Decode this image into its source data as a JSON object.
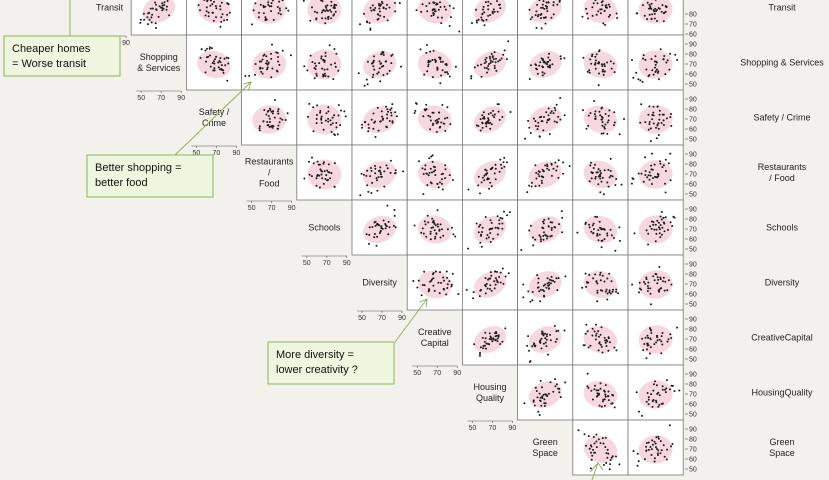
{
  "chart_data": {
    "type": "scatter",
    "title": "",
    "matrix_type": "scatterplot-matrix",
    "variables": [
      "Transit",
      "Shopping & Services",
      "Safety / Crime",
      "Restaurants / Food",
      "Schools",
      "Diversity",
      "Creative Capital",
      "Housing Quality",
      "Green Space"
    ],
    "diagonal_labels": [
      [
        "Transit"
      ],
      [
        "Shopping",
        "& Services"
      ],
      [
        "Safety /",
        "Crime"
      ],
      [
        "Restaurants",
        "/",
        "Food"
      ],
      [
        "Schools"
      ],
      [
        "Diversity"
      ],
      [
        "Creative",
        "Capital"
      ],
      [
        "Housing",
        "Quality"
      ],
      [
        "Green",
        "Space"
      ]
    ],
    "right_labels": [
      [
        "Transit"
      ],
      [
        "Shopping & Services"
      ],
      [
        "Safety  / Crime"
      ],
      [
        "Restaurants",
        "/ Food"
      ],
      [
        "Schools"
      ],
      [
        "Diversity"
      ],
      [
        "CreativeCapital"
      ],
      [
        "HousingQuality"
      ],
      [
        "Green",
        "Space"
      ]
    ],
    "x_ticks": [
      "50",
      "70",
      "90"
    ],
    "y_ticks": [
      "90",
      "80",
      "70",
      "60",
      "50"
    ],
    "right_y_ticks": [
      "80",
      "70",
      "60",
      "90",
      "80",
      "70",
      "60",
      "50",
      "90",
      "80",
      "70",
      "60",
      "50",
      "90",
      "80",
      "70",
      "60",
      "50",
      "90",
      "80",
      "70",
      "60",
      "50",
      "90",
      "80",
      "70",
      "60",
      "50",
      "90",
      "80",
      "70",
      "60",
      "50",
      "90",
      "80",
      "70",
      "60",
      "50",
      "90",
      "80",
      "70",
      "60",
      "50"
    ],
    "axis_range": [
      50,
      95
    ],
    "grid": false,
    "callouts": [
      {
        "lines": [
          "Cheaper homes",
          "= Worse transit"
        ]
      },
      {
        "lines": [
          "Better shopping =",
          "better food"
        ]
      },
      {
        "lines": [
          "More diversity =",
          "lower creativity ?"
        ]
      }
    ]
  }
}
